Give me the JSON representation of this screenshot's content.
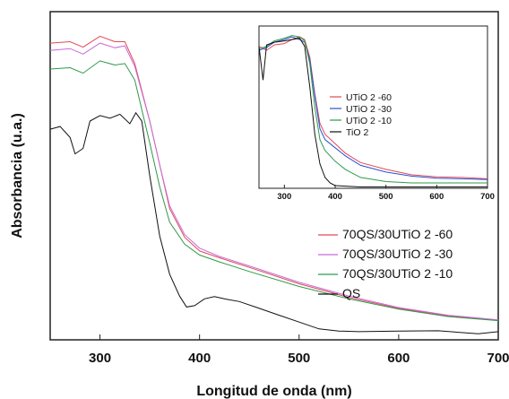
{
  "chart_data": [
    {
      "type": "line",
      "xlabel": "Longitud de onda (nm)",
      "ylabel": "Absorbancia (u.a.)",
      "xlim": [
        250,
        700
      ],
      "ylim": [
        0,
        1.2
      ],
      "x_ticks": [
        "300",
        "400",
        "500",
        "600",
        "700"
      ],
      "y_ticks": [],
      "grid": false,
      "legend_position": "right",
      "series": [
        {
          "name": "70QS/30UTiO 2 -60",
          "color": "#e04a5a",
          "points": [
            [
              250,
              1.085
            ],
            [
              270,
              1.09
            ],
            [
              283,
              1.07
            ],
            [
              300,
              1.11
            ],
            [
              315,
              1.09
            ],
            [
              325,
              1.09
            ],
            [
              335,
              1.01
            ],
            [
              350,
              0.8
            ],
            [
              360,
              0.64
            ],
            [
              370,
              0.48
            ],
            [
              385,
              0.375
            ],
            [
              400,
              0.325
            ],
            [
              420,
              0.3
            ],
            [
              450,
              0.265
            ],
            [
              500,
              0.205
            ],
            [
              550,
              0.155
            ],
            [
              600,
              0.115
            ],
            [
              650,
              0.088
            ],
            [
              700,
              0.072
            ]
          ]
        },
        {
          "name": "70QS/30UTiO 2 -30",
          "color": "#c86ad8",
          "points": [
            [
              250,
              1.058
            ],
            [
              270,
              1.065
            ],
            [
              283,
              1.045
            ],
            [
              300,
              1.085
            ],
            [
              315,
              1.068
            ],
            [
              325,
              1.075
            ],
            [
              335,
              1.0
            ],
            [
              350,
              0.8
            ],
            [
              360,
              0.64
            ],
            [
              370,
              0.49
            ],
            [
              385,
              0.385
            ],
            [
              400,
              0.335
            ],
            [
              420,
              0.305
            ],
            [
              450,
              0.27
            ],
            [
              500,
              0.21
            ],
            [
              550,
              0.16
            ],
            [
              600,
              0.118
            ],
            [
              650,
              0.09
            ],
            [
              700,
              0.073
            ]
          ]
        },
        {
          "name": "70QS/30UTiO 2 -10",
          "color": "#2e9a4a",
          "points": [
            [
              250,
              0.99
            ],
            [
              270,
              0.995
            ],
            [
              283,
              0.975
            ],
            [
              300,
              1.02
            ],
            [
              315,
              1.005
            ],
            [
              325,
              1.01
            ],
            [
              335,
              0.95
            ],
            [
              350,
              0.72
            ],
            [
              360,
              0.56
            ],
            [
              370,
              0.43
            ],
            [
              385,
              0.35
            ],
            [
              400,
              0.31
            ],
            [
              420,
              0.285
            ],
            [
              450,
              0.25
            ],
            [
              500,
              0.195
            ],
            [
              550,
              0.15
            ],
            [
              600,
              0.112
            ],
            [
              650,
              0.085
            ],
            [
              700,
              0.07
            ]
          ]
        },
        {
          "name": "QS",
          "color": "#111111",
          "points": [
            [
              250,
              0.77
            ],
            [
              260,
              0.78
            ],
            [
              270,
              0.74
            ],
            [
              275,
              0.68
            ],
            [
              283,
              0.7
            ],
            [
              290,
              0.8
            ],
            [
              300,
              0.82
            ],
            [
              310,
              0.81
            ],
            [
              320,
              0.825
            ],
            [
              330,
              0.79
            ],
            [
              336,
              0.83
            ],
            [
              342,
              0.8
            ],
            [
              350,
              0.6
            ],
            [
              360,
              0.38
            ],
            [
              370,
              0.24
            ],
            [
              380,
              0.16
            ],
            [
              387,
              0.12
            ],
            [
              395,
              0.125
            ],
            [
              405,
              0.15
            ],
            [
              415,
              0.158
            ],
            [
              425,
              0.15
            ],
            [
              440,
              0.14
            ],
            [
              460,
              0.115
            ],
            [
              480,
              0.09
            ],
            [
              500,
              0.065
            ],
            [
              520,
              0.04
            ],
            [
              540,
              0.032
            ],
            [
              560,
              0.03
            ],
            [
              600,
              0.032
            ],
            [
              640,
              0.033
            ],
            [
              680,
              0.022
            ],
            [
              700,
              0.03
            ]
          ]
        }
      ]
    },
    {
      "type": "line",
      "xlabel": "",
      "ylabel": "",
      "xlim": [
        250,
        700
      ],
      "ylim": [
        0,
        1.2
      ],
      "x_ticks": [
        "300",
        "400",
        "500",
        "600",
        "700"
      ],
      "grid": false,
      "legend_position": "right",
      "series": [
        {
          "name": "UTiO 2 -60",
          "color": "#e04a5a",
          "points": [
            [
              250,
              1.05
            ],
            [
              265,
              1.02
            ],
            [
              280,
              1.06
            ],
            [
              300,
              1.07
            ],
            [
              315,
              1.1
            ],
            [
              330,
              1.12
            ],
            [
              340,
              1.1
            ],
            [
              350,
              0.97
            ],
            [
              360,
              0.7
            ],
            [
              370,
              0.48
            ],
            [
              380,
              0.4
            ],
            [
              400,
              0.33
            ],
            [
              420,
              0.26
            ],
            [
              450,
              0.19
            ],
            [
              500,
              0.14
            ],
            [
              550,
              0.1
            ],
            [
              600,
              0.085
            ],
            [
              650,
              0.08
            ],
            [
              700,
              0.07
            ]
          ]
        },
        {
          "name": "UTiO 2 -30",
          "color": "#2a4fd0",
          "points": [
            [
              250,
              1.02
            ],
            [
              265,
              1.04
            ],
            [
              280,
              1.08
            ],
            [
              300,
              1.1
            ],
            [
              315,
              1.12
            ],
            [
              330,
              1.1
            ],
            [
              340,
              1.08
            ],
            [
              350,
              0.95
            ],
            [
              360,
              0.68
            ],
            [
              370,
              0.44
            ],
            [
              380,
              0.36
            ],
            [
              400,
              0.3
            ],
            [
              420,
              0.24
            ],
            [
              450,
              0.17
            ],
            [
              500,
              0.12
            ],
            [
              550,
              0.09
            ],
            [
              600,
              0.075
            ],
            [
              650,
              0.07
            ],
            [
              700,
              0.065
            ]
          ]
        },
        {
          "name": "UTiO 2 -10",
          "color": "#2e9a4a",
          "points": [
            [
              250,
              1.03
            ],
            [
              265,
              1.05
            ],
            [
              280,
              1.09
            ],
            [
              300,
              1.11
            ],
            [
              315,
              1.13
            ],
            [
              330,
              1.12
            ],
            [
              340,
              1.09
            ],
            [
              350,
              0.92
            ],
            [
              360,
              0.6
            ],
            [
              370,
              0.36
            ],
            [
              380,
              0.28
            ],
            [
              400,
              0.2
            ],
            [
              420,
              0.14
            ],
            [
              450,
              0.08
            ],
            [
              500,
              0.05
            ],
            [
              550,
              0.04
            ],
            [
              600,
              0.04
            ],
            [
              650,
              0.04
            ],
            [
              700,
              0.04
            ]
          ]
        },
        {
          "name": "TiO 2",
          "color": "#111111",
          "points": [
            [
              250,
              1.05
            ],
            [
              258,
              0.8
            ],
            [
              265,
              1.06
            ],
            [
              280,
              1.08
            ],
            [
              300,
              1.09
            ],
            [
              315,
              1.1
            ],
            [
              330,
              1.11
            ],
            [
              340,
              1.05
            ],
            [
              350,
              0.75
            ],
            [
              360,
              0.4
            ],
            [
              370,
              0.18
            ],
            [
              380,
              0.08
            ],
            [
              390,
              0.04
            ],
            [
              400,
              0.02
            ],
            [
              450,
              0.01
            ],
            [
              500,
              0.01
            ],
            [
              600,
              0.01
            ],
            [
              700,
              0.01
            ]
          ]
        }
      ]
    }
  ]
}
